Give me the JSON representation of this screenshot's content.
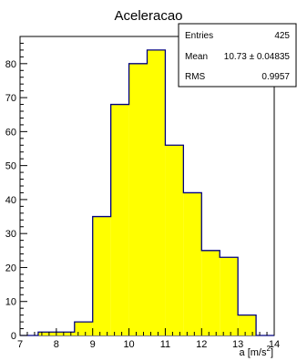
{
  "chart_data": {
    "type": "bar",
    "title": "Aceleracao",
    "xlabel": "a [m/s²]",
    "xlabel_base": "a [m/s",
    "xlabel_sup": "2",
    "xlabel_tail": "]",
    "ylabel": "",
    "xlim": [
      7,
      14
    ],
    "ylim": [
      0,
      88
    ],
    "x_ticks": [
      7,
      8,
      9,
      10,
      11,
      12,
      13,
      14
    ],
    "y_ticks": [
      0,
      10,
      20,
      30,
      40,
      50,
      60,
      70,
      80
    ],
    "bin_edges": [
      7.0,
      7.5,
      8.0,
      8.5,
      9.0,
      9.5,
      10.0,
      10.5,
      11.0,
      11.5,
      12.0,
      12.5,
      13.0,
      13.5,
      14.0
    ],
    "values": [
      0,
      1,
      1,
      4,
      35,
      68,
      80,
      84,
      56,
      42,
      25,
      23,
      6,
      0
    ],
    "fill_color": "#ffff00",
    "line_color": "#000080",
    "grid": false,
    "legend": "none",
    "stats_box": {
      "position": "top-right",
      "rows": [
        {
          "label": "Entries",
          "value": "425"
        },
        {
          "label": "Mean",
          "value": "10.73 ± 0.04835"
        },
        {
          "label": "RMS",
          "value": "0.9957"
        }
      ]
    }
  }
}
